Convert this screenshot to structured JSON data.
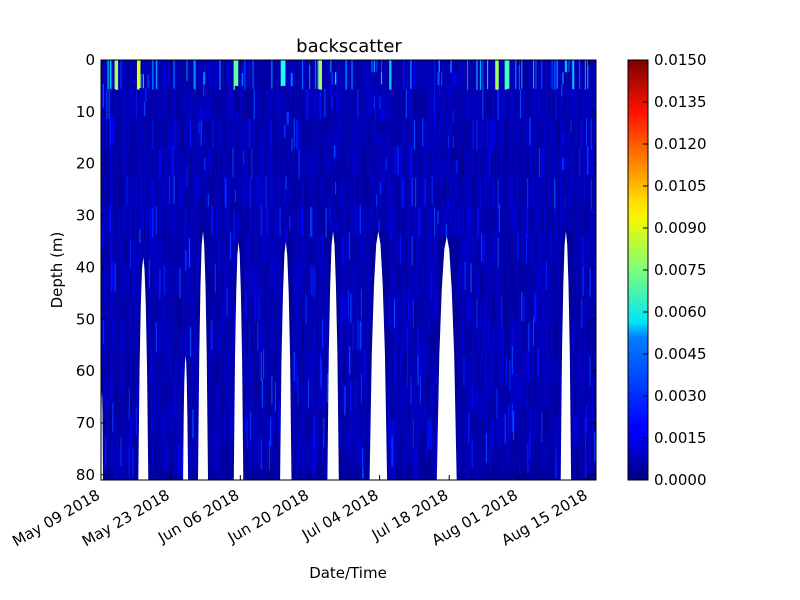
{
  "chart_data": {
    "type": "heatmap",
    "title": "backscatter",
    "xlabel": "Date/Time",
    "ylabel": "Depth (m)",
    "x_tick_labels": [
      "May 09 2018",
      "May 23 2018",
      "Jun 06 2018",
      "Jun 20 2018",
      "Jul 04 2018",
      "Jul 18 2018",
      "Aug 01 2018",
      "Aug 15 2018"
    ],
    "x_tick_days": [
      0,
      14,
      28,
      42,
      56,
      70,
      84,
      98
    ],
    "x_range_days": [
      0,
      99.5
    ],
    "ylim": [
      81,
      0
    ],
    "y_ticks": [
      0,
      10,
      20,
      30,
      40,
      50,
      60,
      70,
      80
    ],
    "colorbar": {
      "min": 0.0,
      "max": 0.015,
      "tick_labels": [
        "0.0000",
        "0.0015",
        "0.0030",
        "0.0045",
        "0.0060",
        "0.0075",
        "0.0090",
        "0.0105",
        "0.0120",
        "0.0135",
        "0.0150"
      ],
      "colormap": "jet"
    },
    "gaps": [
      {
        "start_day": 0.0,
        "end_day": 0.4,
        "max_depth": 64
      },
      {
        "start_day": 7.5,
        "end_day": 9.5,
        "max_depth": 38
      },
      {
        "start_day": 16.5,
        "end_day": 17.5,
        "max_depth": 57
      },
      {
        "start_day": 19.5,
        "end_day": 21.5,
        "max_depth": 33
      },
      {
        "start_day": 26.7,
        "end_day": 28.6,
        "max_depth": 35
      },
      {
        "start_day": 36.0,
        "end_day": 38.3,
        "max_depth": 35
      },
      {
        "start_day": 45.5,
        "end_day": 47.8,
        "max_depth": 33
      },
      {
        "start_day": 54.0,
        "end_day": 57.5,
        "max_depth": 33
      },
      {
        "start_day": 67.5,
        "end_day": 71.5,
        "max_depth": 34
      },
      {
        "start_day": 92.4,
        "end_day": 94.5,
        "max_depth": 33
      }
    ],
    "high_values": [
      {
        "day": 3,
        "depth": 1,
        "value": 0.008
      },
      {
        "day": 7.5,
        "depth": 1,
        "value": 0.009
      },
      {
        "day": 27,
        "depth": 1,
        "value": 0.007
      },
      {
        "day": 36.5,
        "depth": 1,
        "value": 0.006
      },
      {
        "day": 44,
        "depth": 1,
        "value": 0.008
      },
      {
        "day": 79.5,
        "depth": 1,
        "value": 0.008
      },
      {
        "day": 81.5,
        "depth": 1,
        "value": 0.0065
      }
    ]
  }
}
